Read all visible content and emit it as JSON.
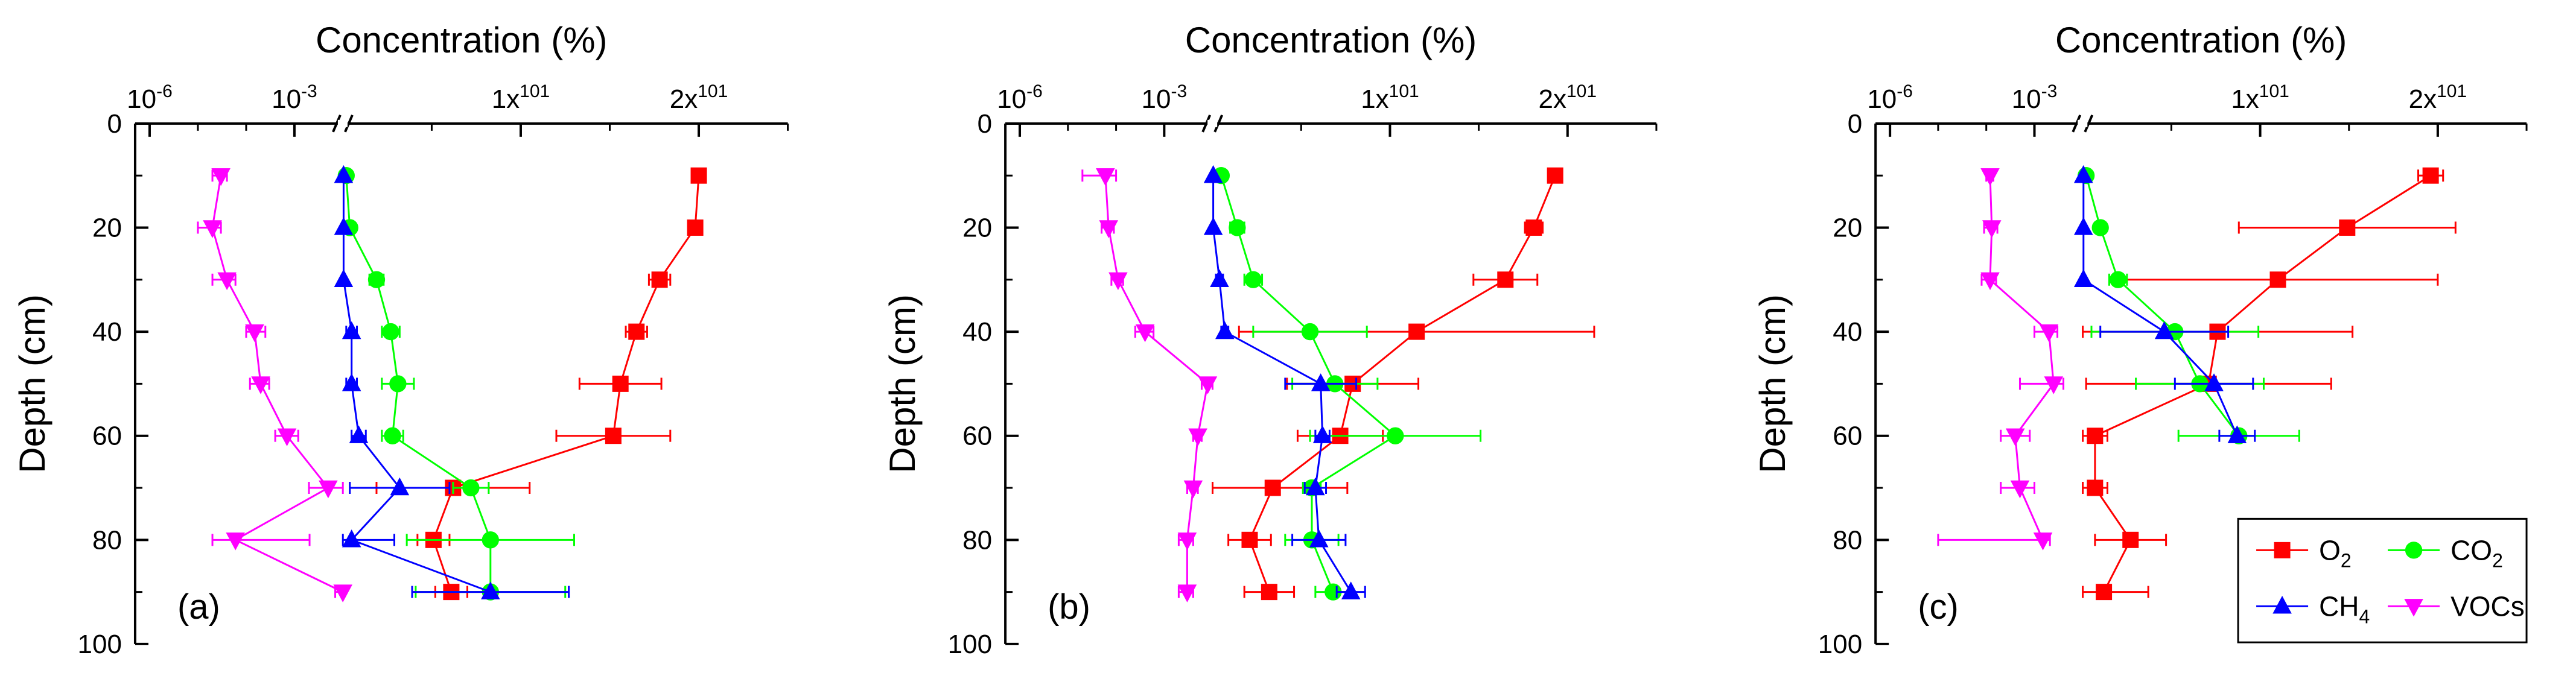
{
  "figure": {
    "panels": [
      {
        "label": "(a)"
      },
      {
        "label": "(b)"
      },
      {
        "label": "(c)"
      }
    ]
  },
  "legend": {
    "entries": [
      {
        "name": "O2",
        "base": "O",
        "sub": "2",
        "color": "#ff0000",
        "marker": "square"
      },
      {
        "name": "CO2",
        "base": "CO",
        "sub": "2",
        "color": "#00ff00",
        "marker": "circle"
      },
      {
        "name": "CH4",
        "base": "CH",
        "sub": "4",
        "color": "#0000ff",
        "marker": "triangle-up"
      },
      {
        "name": "VOCs",
        "base": "VOCs",
        "sub": "",
        "color": "#ff00ff",
        "marker": "triangle-down"
      }
    ]
  },
  "chart_data": [
    {
      "type": "scatter",
      "panel": "(a)",
      "title": "",
      "xlabel": "Concentration (%)",
      "ylabel": "Depth (cm)",
      "x_axis": {
        "scale": "broken: log (10^-6 to 10^-2) then linear (0 to 25)",
        "tick_labels": [
          "10-6",
          "10-3",
          "1x101",
          "2x101"
        ]
      },
      "y_axis": {
        "inverted": true,
        "ylim": [
          0,
          100
        ],
        "ticks": [
          0,
          20,
          40,
          60,
          80,
          100
        ]
      },
      "grid": false,
      "series": [
        {
          "name": "O2",
          "color": "#ff0000",
          "marker": "square",
          "points": [
            {
              "depth": 10,
              "x": 20.0,
              "err": 0.3
            },
            {
              "depth": 20,
              "x": 19.8,
              "err": 0.3
            },
            {
              "depth": 30,
              "x": 17.8,
              "err": 0.6
            },
            {
              "depth": 40,
              "x": 16.5,
              "err": 0.6
            },
            {
              "depth": 50,
              "x": 15.6,
              "err": 2.3
            },
            {
              "depth": 60,
              "x": 15.2,
              "err": 3.2
            },
            {
              "depth": 70,
              "x": 6.2,
              "err": 4.3
            },
            {
              "depth": 80,
              "x": 5.1,
              "err": 0.9
            },
            {
              "depth": 90,
              "x": 6.1,
              "err": 0.9
            }
          ]
        },
        {
          "name": "CO2",
          "color": "#00ff00",
          "marker": "circle",
          "points": [
            {
              "depth": 10,
              "x": 0.2,
              "err": 0.1
            },
            {
              "depth": 20,
              "x": 0.4,
              "err": 0.2
            },
            {
              "depth": 30,
              "x": 1.9,
              "err": 0.4
            },
            {
              "depth": 40,
              "x": 2.7,
              "err": 0.5
            },
            {
              "depth": 50,
              "x": 3.1,
              "err": 0.9
            },
            {
              "depth": 60,
              "x": 2.8,
              "err": 0.6
            },
            {
              "depth": 70,
              "x": 7.2,
              "err": 1.0
            },
            {
              "depth": 80,
              "x": 8.3,
              "err": 4.7
            },
            {
              "depth": 90,
              "x": 8.3,
              "err": 4.2
            }
          ]
        },
        {
          "name": "CH4",
          "color": "#0000ff",
          "marker": "triangle-up",
          "points": [
            {
              "depth": 10,
              "x": 0.05,
              "err": 0.05
            },
            {
              "depth": 20,
              "x": 0.05,
              "err": 0.05
            },
            {
              "depth": 30,
              "x": 0.05,
              "err": 0.05
            },
            {
              "depth": 40,
              "x": 0.5,
              "err": 0.3
            },
            {
              "depth": 50,
              "x": 0.5,
              "err": 0.3
            },
            {
              "depth": 60,
              "x": 0.9,
              "err": 0.4
            },
            {
              "depth": 70,
              "x": 3.2,
              "err": 2.8
            },
            {
              "depth": 80,
              "x": 0.5,
              "err": 2.4
            },
            {
              "depth": 90,
              "x": 8.3,
              "err": 4.4
            }
          ]
        },
        {
          "name": "VOCs",
          "color": "#ff00ff",
          "marker": "triangle-down",
          "points": [
            {
              "depth": 10,
              "x": 3e-05,
              "err_low": 1e-05,
              "err_high": 1e-05
            },
            {
              "depth": 20,
              "x": 2e-05,
              "err_low": 1e-05,
              "err_high": 1e-05
            },
            {
              "depth": 30,
              "x": 4e-05,
              "err_low": 2e-05,
              "err_high": 2e-05
            },
            {
              "depth": 40,
              "x": 0.00015,
              "err_low": 5e-05,
              "err_high": 0.0001
            },
            {
              "depth": 50,
              "x": 0.0002,
              "err_low": 8e-05,
              "err_high": 0.0001
            },
            {
              "depth": 60,
              "x": 0.0007,
              "err_low": 0.0003,
              "err_high": 0.0005
            },
            {
              "depth": 70,
              "x": 0.005,
              "err_low": 0.003,
              "err_high": 0.005
            },
            {
              "depth": 80,
              "x": 6e-05,
              "err_low": 4e-05,
              "err_high": 0.002
            },
            {
              "depth": 90,
              "x": 0.01,
              "err_low": 0.003,
              "err_high": 0.003
            }
          ]
        }
      ]
    },
    {
      "type": "scatter",
      "panel": "(b)",
      "title": "",
      "xlabel": "Concentration (%)",
      "ylabel": "Depth (cm)",
      "x_axis": {
        "scale": "broken: log (10^-6 to 10^-2) then linear (0 to 25)",
        "tick_labels": [
          "10-6",
          "10-3",
          "1x101",
          "2x101"
        ]
      },
      "y_axis": {
        "inverted": true,
        "ylim": [
          0,
          100
        ],
        "ticks": [
          0,
          20,
          40,
          60,
          80,
          100
        ]
      },
      "grid": false,
      "series": [
        {
          "name": "O2",
          "color": "#ff0000",
          "marker": "square",
          "points": [
            {
              "depth": 10,
              "x": 19.3,
              "err": 0.4
            },
            {
              "depth": 20,
              "x": 18.1,
              "err": 0.5
            },
            {
              "depth": 30,
              "x": 16.5,
              "err": 1.8
            },
            {
              "depth": 40,
              "x": 11.5,
              "err": 10.0
            },
            {
              "depth": 50,
              "x": 7.9,
              "err": 3.7
            },
            {
              "depth": 60,
              "x": 7.2,
              "err": 2.4
            },
            {
              "depth": 70,
              "x": 3.4,
              "err": 4.2
            },
            {
              "depth": 80,
              "x": 2.1,
              "err": 1.2
            },
            {
              "depth": 90,
              "x": 3.2,
              "err": 1.4
            }
          ]
        },
        {
          "name": "CO2",
          "color": "#00ff00",
          "marker": "circle",
          "points": [
            {
              "depth": 10,
              "x": 0.5,
              "err": 0.2
            },
            {
              "depth": 20,
              "x": 1.4,
              "err": 0.4
            },
            {
              "depth": 30,
              "x": 2.3,
              "err": 0.5
            },
            {
              "depth": 40,
              "x": 5.5,
              "err": 3.2
            },
            {
              "depth": 50,
              "x": 6.9,
              "err": 2.4
            },
            {
              "depth": 60,
              "x": 10.3,
              "err": 4.8
            },
            {
              "depth": 70,
              "x": 5.6,
              "err": 0.5
            },
            {
              "depth": 80,
              "x": 5.6,
              "err": 1.5
            },
            {
              "depth": 90,
              "x": 6.8,
              "err": 1.0
            }
          ]
        },
        {
          "name": "CH4",
          "color": "#0000ff",
          "marker": "triangle-up",
          "points": [
            {
              "depth": 10,
              "x": 0.05,
              "err": 0.05
            },
            {
              "depth": 20,
              "x": 0.05,
              "err": 0.05
            },
            {
              "depth": 30,
              "x": 0.4,
              "err": 0.2
            },
            {
              "depth": 40,
              "x": 0.7,
              "err": 0.2
            },
            {
              "depth": 50,
              "x": 6.1,
              "err": 2.0
            },
            {
              "depth": 60,
              "x": 6.2,
              "err": 0.4
            },
            {
              "depth": 70,
              "x": 5.8,
              "err": 0.6
            },
            {
              "depth": 80,
              "x": 6.0,
              "err": 1.5
            },
            {
              "depth": 90,
              "x": 7.8,
              "err": 0.8
            }
          ]
        },
        {
          "name": "VOCs",
          "color": "#ff00ff",
          "marker": "triangle-down",
          "points": [
            {
              "depth": 10,
              "x": 6e-05,
              "err_low": 4e-05,
              "err_high": 4e-05
            },
            {
              "depth": 20,
              "x": 7e-05,
              "err_low": 2e-05,
              "err_high": 2e-05
            },
            {
              "depth": 30,
              "x": 0.00011,
              "err_low": 3e-05,
              "err_high": 3e-05
            },
            {
              "depth": 40,
              "x": 0.0004,
              "err_low": 0.00015,
              "err_high": 0.0002
            },
            {
              "depth": 50,
              "x": 0.008,
              "err_low": 0.002,
              "err_high": 0.002
            },
            {
              "depth": 60,
              "x": 0.005,
              "err_low": 0.001,
              "err_high": 0.001
            },
            {
              "depth": 70,
              "x": 0.004,
              "err_low": 0.001,
              "err_high": 0.001
            },
            {
              "depth": 80,
              "x": 0.003,
              "err_low": 0.001,
              "err_high": 0.001
            },
            {
              "depth": 90,
              "x": 0.003,
              "err_low": 0.001,
              "err_high": 0.001
            }
          ]
        }
      ]
    },
    {
      "type": "scatter",
      "panel": "(c)",
      "title": "",
      "xlabel": "Concentration (%)",
      "ylabel": "Depth (cm)",
      "x_axis": {
        "scale": "broken: log (10^-6 to 10^-2) then linear (0 to 25)",
        "tick_labels": [
          "10-6",
          "10-3",
          "1x101",
          "2x101"
        ]
      },
      "y_axis": {
        "inverted": true,
        "ylim": [
          0,
          100
        ],
        "ticks": [
          0,
          20,
          40,
          60,
          80,
          100
        ]
      },
      "grid": false,
      "series": [
        {
          "name": "O2",
          "color": "#ff0000",
          "marker": "square",
          "points": [
            {
              "depth": 10,
              "x": 19.6,
              "err": 0.7
            },
            {
              "depth": 20,
              "x": 14.9,
              "err": 6.1
            },
            {
              "depth": 30,
              "x": 11.0,
              "err": 9.0
            },
            {
              "depth": 40,
              "x": 7.6,
              "err": 7.6
            },
            {
              "depth": 50,
              "x": 7.1,
              "err": 6.9
            },
            {
              "depth": 60,
              "x": 0.7,
              "err": 0.7
            },
            {
              "depth": 70,
              "x": 0.7,
              "err": 0.7
            },
            {
              "depth": 80,
              "x": 2.7,
              "err": 2.0
            },
            {
              "depth": 90,
              "x": 1.2,
              "err": 2.5
            }
          ]
        },
        {
          "name": "CO2",
          "color": "#00ff00",
          "marker": "circle",
          "points": [
            {
              "depth": 10,
              "x": 0.2,
              "err": 0.1
            },
            {
              "depth": 20,
              "x": 1.0,
              "err": 0.3
            },
            {
              "depth": 30,
              "x": 2.0,
              "err": 0.5
            },
            {
              "depth": 40,
              "x": 5.2,
              "err": 4.7
            },
            {
              "depth": 50,
              "x": 6.6,
              "err": 3.6
            },
            {
              "depth": 60,
              "x": 8.8,
              "err": 3.4
            }
          ]
        },
        {
          "name": "CH4",
          "color": "#0000ff",
          "marker": "triangle-up",
          "points": [
            {
              "depth": 10,
              "x": 0.05,
              "err": 0.05
            },
            {
              "depth": 20,
              "x": 0.05,
              "err": 0.05
            },
            {
              "depth": 30,
              "x": 0.05,
              "err": 0.05
            },
            {
              "depth": 40,
              "x": 4.6,
              "err": 3.6
            },
            {
              "depth": 50,
              "x": 7.4,
              "err": 2.2
            },
            {
              "depth": 60,
              "x": 8.7,
              "err": 1.0
            }
          ]
        },
        {
          "name": "VOCs",
          "color": "#ff00ff",
          "marker": "triangle-down",
          "points": [
            {
              "depth": 10,
              "x": 0.00012,
              "err_low": 2e-05,
              "err_high": 2e-05
            },
            {
              "depth": 20,
              "x": 0.00013,
              "err_low": 4e-05,
              "err_high": 4e-05
            },
            {
              "depth": 30,
              "x": 0.00012,
              "err_low": 4e-05,
              "err_high": 4e-05
            },
            {
              "depth": 40,
              "x": 0.002,
              "err_low": 0.001,
              "err_high": 0.001
            },
            {
              "depth": 50,
              "x": 0.0025,
              "err_low": 0.002,
              "err_high": 0.0015
            },
            {
              "depth": 60,
              "x": 0.0004,
              "err_low": 0.0002,
              "err_high": 0.0004
            },
            {
              "depth": 70,
              "x": 0.0005,
              "err_low": 0.0003,
              "err_high": 0.0005
            },
            {
              "depth": 80,
              "x": 0.0015,
              "err_low": 0.00149,
              "err_high": 0.0006
            }
          ]
        }
      ]
    }
  ]
}
